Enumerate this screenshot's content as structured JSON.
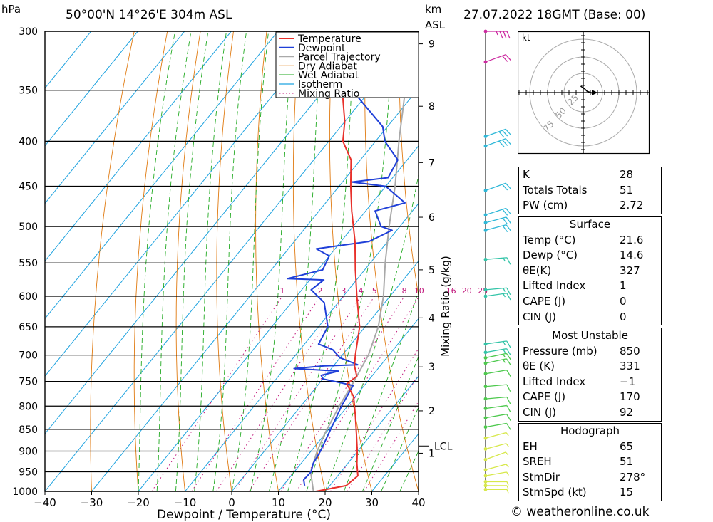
{
  "header": {
    "pressure_unit": "hPa",
    "location": "50°00'N  14°26'E  304m  ASL",
    "km_label": "km",
    "asl_label": "ASL",
    "datetime": "27.07.2022  18GMT  (Base: 00)"
  },
  "chart_data": {
    "type": "line",
    "title": "",
    "xlabel": "Dewpoint / Temperature (°C)",
    "ylabel": "hPa",
    "mixing_ratio_axis_label": "Mixing Ratio (g/kg)",
    "x_ticks": [
      "−40",
      "−30",
      "−20",
      "−10",
      "0",
      "10",
      "20",
      "30",
      "40"
    ],
    "xlim": [
      -40,
      40
    ],
    "ylim": [
      1000,
      300
    ],
    "y_scale": "log",
    "pressure_levels": [
      300,
      350,
      400,
      450,
      500,
      550,
      600,
      650,
      700,
      750,
      800,
      850,
      900,
      950,
      1000
    ],
    "height_km_ticks": [
      {
        "label": "9",
        "p": 310
      },
      {
        "label": "8",
        "p": 365
      },
      {
        "label": "7",
        "p": 423
      },
      {
        "label": "6",
        "p": 488
      },
      {
        "label": "5",
        "p": 560
      },
      {
        "label": "4",
        "p": 635
      },
      {
        "label": "3",
        "p": 722
      },
      {
        "label": "2",
        "p": 810
      },
      {
        "label": "1",
        "p": 905
      }
    ],
    "lcl": {
      "label": "LCL",
      "p": 888
    },
    "mixing_ratio_labels": [
      "1",
      "2",
      "3",
      "4",
      "5",
      "8",
      "10",
      "16",
      "20",
      "25"
    ],
    "mixing_ratio_values": [
      1,
      2,
      3,
      4,
      5,
      8,
      10,
      16,
      20,
      25
    ],
    "legend": {
      "position": "top-right",
      "entries": [
        {
          "label": "Temperature",
          "color": "#e8302a"
        },
        {
          "label": "Dewpoint",
          "color": "#1f3fd8"
        },
        {
          "label": "Parcel Trajectory",
          "color": "#a9a9a9"
        },
        {
          "label": "Dry Adiabat",
          "color": "#e07a10"
        },
        {
          "label": "Wet Adiabat",
          "color": "#22aa22"
        },
        {
          "label": "Isotherm",
          "color": "#1fa3e0"
        },
        {
          "label": "Mixing Ratio",
          "color": "#c0147a"
        }
      ]
    },
    "series": [
      {
        "name": "Temperature",
        "points": [
          [
            1000,
            18
          ],
          [
            985,
            23.5
          ],
          [
            960,
            24.3
          ],
          [
            930,
            22
          ],
          [
            900,
            19.9
          ],
          [
            860,
            16.7
          ],
          [
            820,
            13.3
          ],
          [
            780,
            9.6
          ],
          [
            755,
            6
          ],
          [
            740,
            6.8
          ],
          [
            720,
            4.5
          ],
          [
            700,
            2.8
          ],
          [
            650,
            -1.2
          ],
          [
            600,
            -7.1
          ],
          [
            560,
            -12
          ],
          [
            520,
            -17
          ],
          [
            480,
            -23
          ],
          [
            450,
            -27.5
          ],
          [
            420,
            -32
          ],
          [
            400,
            -37
          ],
          [
            380,
            -40
          ],
          [
            350,
            -46
          ],
          [
            320,
            -50
          ],
          [
            300,
            -54
          ]
        ]
      },
      {
        "name": "Dewpoint",
        "points": [
          [
            985,
            14.6
          ],
          [
            970,
            13.4
          ],
          [
            950,
            13.6
          ],
          [
            930,
            12.6
          ],
          [
            900,
            12
          ],
          [
            850,
            10.4
          ],
          [
            800,
            8.7
          ],
          [
            758,
            7.6
          ],
          [
            745,
            0
          ],
          [
            738,
            -1
          ],
          [
            730,
            2
          ],
          [
            725,
            -8
          ],
          [
            720,
            -2
          ],
          [
            718,
            5
          ],
          [
            705,
            0
          ],
          [
            690,
            -3
          ],
          [
            680,
            -7
          ],
          [
            650,
            -8
          ],
          [
            610,
            -13
          ],
          [
            590,
            -18
          ],
          [
            575,
            -17
          ],
          [
            573,
            -25
          ],
          [
            560,
            -19
          ],
          [
            540,
            -20
          ],
          [
            530,
            -24
          ],
          [
            520,
            -14
          ],
          [
            505,
            -11
          ],
          [
            500,
            -14
          ],
          [
            480,
            -18
          ],
          [
            470,
            -13
          ],
          [
            450,
            -20
          ],
          [
            445,
            -28
          ],
          [
            440,
            -21
          ],
          [
            420,
            -22
          ],
          [
            400,
            -28
          ],
          [
            385,
            -31
          ],
          [
            320,
            -56
          ],
          [
            310,
            -58
          ],
          [
            303,
            -53
          ],
          [
            300,
            -52
          ]
        ]
      },
      {
        "name": "Parcel Trajectory",
        "points": [
          [
            1000,
            17.5
          ],
          [
            950,
            13.5
          ],
          [
            900,
            11.3
          ],
          [
            860,
            9.9
          ],
          [
            800,
            8.2
          ],
          [
            750,
            7.1
          ],
          [
            700,
            5.6
          ],
          [
            650,
            2.8
          ],
          [
            600,
            -1.4
          ],
          [
            550,
            -6.8
          ],
          [
            500,
            -12.3
          ],
          [
            450,
            -18
          ],
          [
            400,
            -25
          ],
          [
            350,
            -32.5
          ],
          [
            300,
            -41
          ]
        ]
      }
    ]
  },
  "wind_barbs": [
    {
      "p": 995,
      "dir": 270,
      "spd": 5
    },
    {
      "p": 985,
      "dir": 270,
      "spd": 5
    },
    {
      "p": 975,
      "dir": 270,
      "spd": 5
    },
    {
      "p": 960,
      "dir": 260,
      "spd": 5
    },
    {
      "p": 945,
      "dir": 255,
      "spd": 5
    },
    {
      "p": 920,
      "dir": 250,
      "spd": 5
    },
    {
      "p": 895,
      "dir": 255,
      "spd": 5
    },
    {
      "p": 870,
      "dir": 255,
      "spd": 5
    },
    {
      "p": 845,
      "dir": 260,
      "spd": 10
    },
    {
      "p": 825,
      "dir": 260,
      "spd": 10
    },
    {
      "p": 805,
      "dir": 262,
      "spd": 10
    },
    {
      "p": 785,
      "dir": 265,
      "spd": 10
    },
    {
      "p": 760,
      "dir": 265,
      "spd": 10
    },
    {
      "p": 735,
      "dir": 260,
      "spd": 10
    },
    {
      "p": 715,
      "dir": 258,
      "spd": 15
    },
    {
      "p": 705,
      "dir": 258,
      "spd": 15
    },
    {
      "p": 695,
      "dir": 260,
      "spd": 15
    },
    {
      "p": 680,
      "dir": 262,
      "spd": 15
    },
    {
      "p": 600,
      "dir": 262,
      "spd": 15
    },
    {
      "p": 590,
      "dir": 265,
      "spd": 15
    },
    {
      "p": 545,
      "dir": 265,
      "spd": 15
    },
    {
      "p": 505,
      "dir": 255,
      "spd": 20
    },
    {
      "p": 495,
      "dir": 255,
      "spd": 20
    },
    {
      "p": 485,
      "dir": 252,
      "spd": 20
    },
    {
      "p": 455,
      "dir": 250,
      "spd": 20
    },
    {
      "p": 405,
      "dir": 250,
      "spd": 30
    },
    {
      "p": 395,
      "dir": 250,
      "spd": 30
    },
    {
      "p": 325,
      "dir": 250,
      "spd": 20
    },
    {
      "p": 300,
      "dir": 270,
      "spd": 35
    }
  ],
  "hodograph": {
    "unit_label": "kt",
    "ring_labels": [
      "25",
      "50",
      "75"
    ],
    "trace_points": [
      [
        -2,
        5
      ],
      [
        1,
        3
      ],
      [
        3,
        1
      ],
      [
        6,
        0
      ],
      [
        8,
        -1
      ],
      [
        10,
        0
      ]
    ]
  },
  "indices": {
    "k_label": "K",
    "k_value": "28",
    "tt_label": "Totals Totals",
    "tt_value": "51",
    "pw_label": "PW (cm)",
    "pw_value": "2.72"
  },
  "surface": {
    "title": "Surface",
    "rows": [
      {
        "label": "Temp (°C)",
        "value": "21.6"
      },
      {
        "label": "Dewp (°C)",
        "value": "14.6"
      },
      {
        "label": "θE(K)",
        "value": "327"
      },
      {
        "label": "Lifted Index",
        "value": "1"
      },
      {
        "label": "CAPE (J)",
        "value": "0"
      },
      {
        "label": "CIN (J)",
        "value": "0"
      }
    ]
  },
  "most_unstable": {
    "title": "Most Unstable",
    "rows": [
      {
        "label": "Pressure (mb)",
        "value": "850"
      },
      {
        "label": "θE (K)",
        "value": "331"
      },
      {
        "label": "Lifted Index",
        "value": "−1"
      },
      {
        "label": "CAPE (J)",
        "value": "170"
      },
      {
        "label": "CIN (J)",
        "value": "92"
      }
    ]
  },
  "hodograph_table": {
    "title": "Hodograph",
    "rows": [
      {
        "label": "EH",
        "value": "65"
      },
      {
        "label": "SREH",
        "value": "51"
      },
      {
        "label": "StmDir",
        "value": "278°"
      },
      {
        "label": "StmSpd (kt)",
        "value": "15"
      }
    ]
  },
  "footer": {
    "copyright": "© weatheronline.co.uk"
  }
}
